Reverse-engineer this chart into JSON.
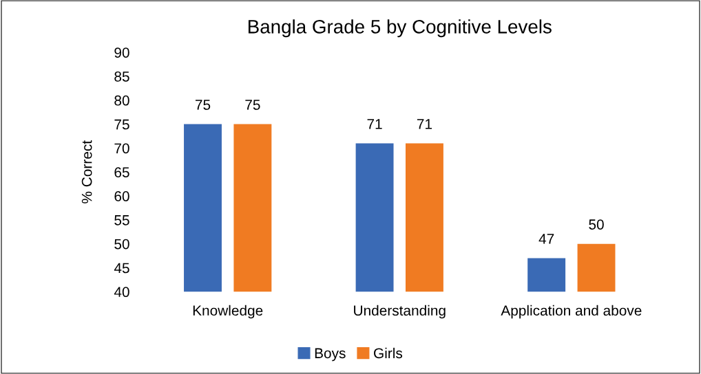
{
  "chart_data": {
    "type": "bar",
    "title": "Bangla Grade 5 by Cognitive Levels",
    "ylabel": "% Correct",
    "categories": [
      "Knowledge",
      "Understanding",
      "Application and above"
    ],
    "series": [
      {
        "name": "Boys",
        "color": "#3a6ab5",
        "values": [
          75,
          71,
          47
        ]
      },
      {
        "name": "Girls",
        "color": "#f07b22",
        "values": [
          75,
          71,
          50
        ]
      }
    ],
    "ylim": [
      40,
      90
    ],
    "yticks": [
      40,
      45,
      50,
      55,
      60,
      65,
      70,
      75,
      80,
      85,
      90
    ],
    "data_labels": true,
    "grid": false,
    "legend": "bottom"
  }
}
